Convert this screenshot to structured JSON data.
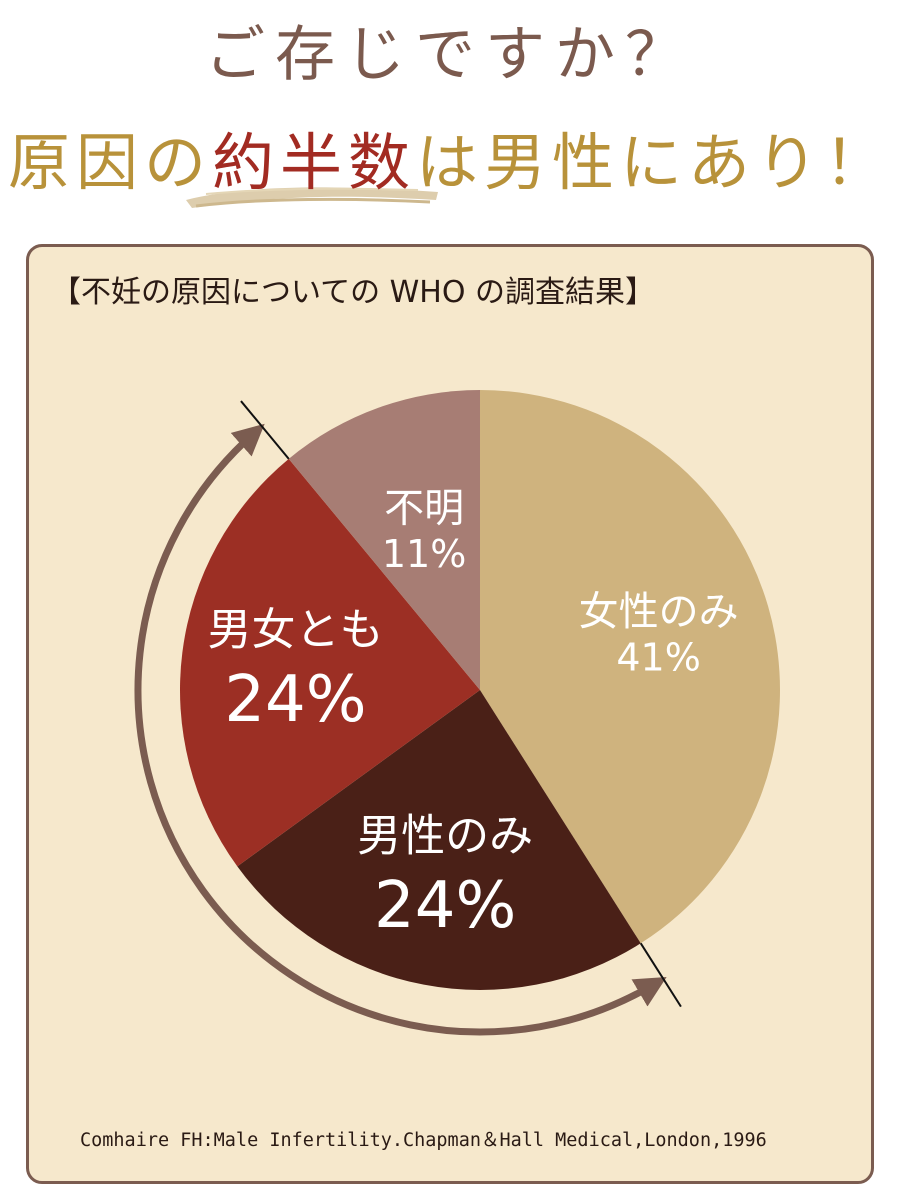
{
  "headline": {
    "line1": "ご存じですか？",
    "line2_part1": "原因の",
    "line2_accent": "約半数",
    "line2_part2": "は男性にあり！"
  },
  "colors": {
    "background": "#f6e8cc",
    "border": "#7b5c50",
    "arrow": "#7b5c50",
    "headline_brown": "#7b5a4e",
    "headline_gold": "#b8923a",
    "headline_red": "#a22b22"
  },
  "chart_data": {
    "type": "pie",
    "title": "【不妊の原因についての WHO の調査結果】",
    "start": "12 o'clock, clockwise",
    "slices": [
      {
        "label": "女性のみ",
        "value": 41,
        "value_label": "41%",
        "color": "#cfb37e"
      },
      {
        "label": "男性のみ",
        "value": 24,
        "value_label": "24%",
        "color": "#4a2017"
      },
      {
        "label": "男女とも",
        "value": 24,
        "value_label": "24%",
        "color": "#9c2f24"
      },
      {
        "label": "不明",
        "value": 11,
        "value_label": "11%",
        "color": "#a77d74"
      }
    ],
    "annotation": "curved arrow spanning 男性のみ and 男女とも"
  },
  "source": "Comhaire FH:Male Infertility.Chapman＆Hall Medical,London,1996"
}
